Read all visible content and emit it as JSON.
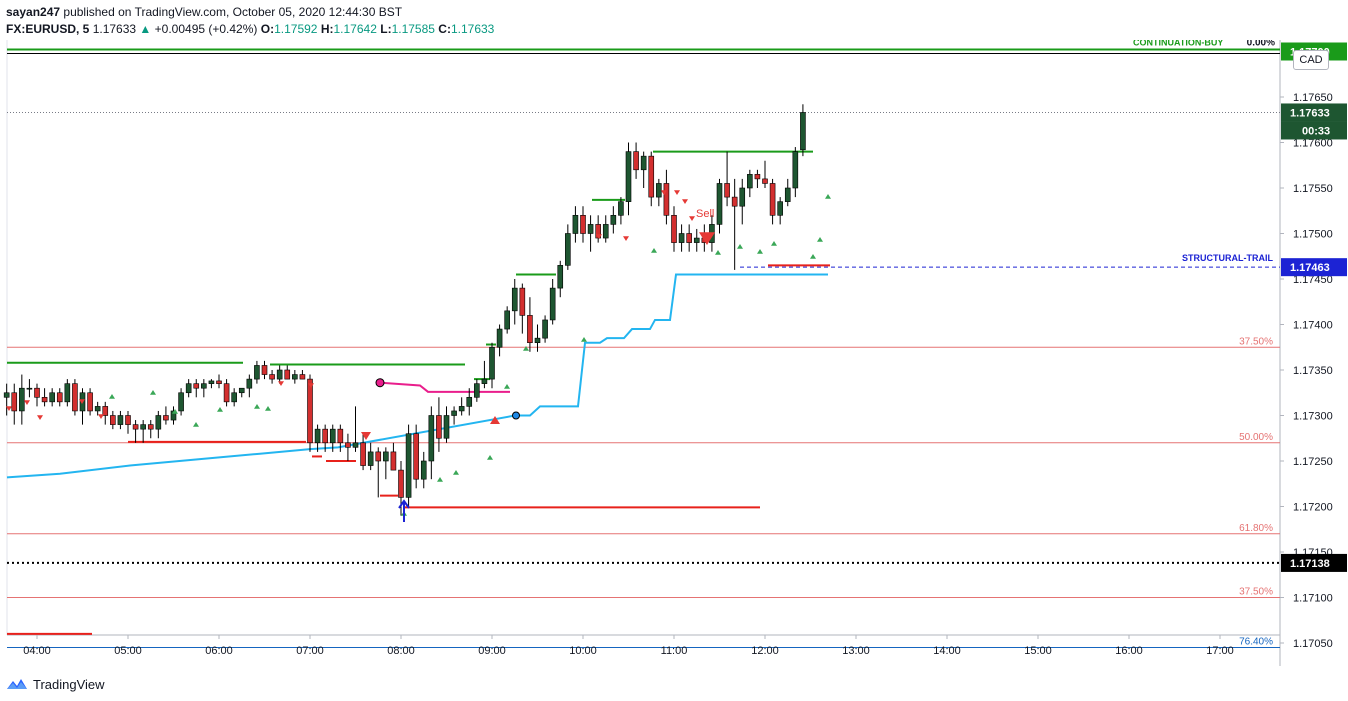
{
  "header": {
    "publisher": "sayan247",
    "published_text": "published on TradingView.com, October 05, 2020 12:44:30 BST",
    "symbol": "FX:EURUSD, 5",
    "last": "1.17633",
    "change": "+0.00495 (+0.42%)",
    "o_label": "O:",
    "o_value": "1.17592",
    "h_label": "H:",
    "h_value": "1.17642",
    "l_label": "L:",
    "l_value": "1.17585",
    "c_label": "C:",
    "c_value": "1.17633"
  },
  "currency_button": "CAD",
  "footer": {
    "brand": "TradingView"
  },
  "colors": {
    "bull": "#1e5631",
    "bear": "#d32f2f",
    "green_level": "#1a9b1a",
    "red_level": "#e8211b",
    "trail": "#23b5f0",
    "pink": "#e91e8c",
    "fib": "#e57373",
    "fib_blue": "#1565c0"
  },
  "chart_data": {
    "type": "candlestick",
    "timeframe": "5",
    "y_axis": {
      "ticks": [
        "1.17650",
        "1.17600",
        "1.17550",
        "1.17500",
        "1.17450",
        "1.17400",
        "1.17350",
        "1.17300",
        "1.17250",
        "1.17200",
        "1.17150",
        "1.17100",
        "1.17050"
      ]
    },
    "x_axis": {
      "ticks": [
        "04:00",
        "05:00",
        "06:00",
        "07:00",
        "08:00",
        "09:00",
        "10:00",
        "11:00",
        "12:00",
        "13:00",
        "14:00",
        "15:00",
        "16:00",
        "17:00"
      ]
    },
    "price_labels": {
      "last": "1.17633",
      "countdown": "00:33",
      "structural_trail": "1.17463",
      "dotted_level": "1.17138",
      "continuation": "1.17700"
    },
    "annotations": {
      "continuation": "CONTINUATION-BUY",
      "continuation_pct": "0.00%",
      "structural_trail": "STRUCTURAL-TRAIL",
      "sell": "Sell"
    },
    "fib_levels": [
      {
        "label": "37.50%",
        "price": 1.17375
      },
      {
        "label": "50.00%",
        "price": 1.1727
      },
      {
        "label": "61.80%",
        "price": 1.1717
      },
      {
        "label": "37.50%",
        "price": 1.171
      },
      {
        "label": "76.40%",
        "price": 1.17045
      }
    ],
    "candles": [
      {
        "t": "03:40",
        "o": 1.1732,
        "h": 1.17335,
        "l": 1.173,
        "c": 1.17325
      },
      {
        "t": "03:45",
        "o": 1.17325,
        "h": 1.17335,
        "l": 1.1729,
        "c": 1.17305
      },
      {
        "t": "03:50",
        "o": 1.17305,
        "h": 1.17345,
        "l": 1.1729,
        "c": 1.1733
      },
      {
        "t": "03:55",
        "o": 1.1733,
        "h": 1.1734,
        "l": 1.1732,
        "c": 1.1733
      },
      {
        "t": "04:00",
        "o": 1.1733,
        "h": 1.17335,
        "l": 1.1731,
        "c": 1.1732
      },
      {
        "t": "04:05",
        "o": 1.1732,
        "h": 1.1733,
        "l": 1.1731,
        "c": 1.17315
      },
      {
        "t": "04:10",
        "o": 1.17315,
        "h": 1.1733,
        "l": 1.1731,
        "c": 1.17325
      },
      {
        "t": "04:15",
        "o": 1.17325,
        "h": 1.1733,
        "l": 1.1731,
        "c": 1.17315
      },
      {
        "t": "04:20",
        "o": 1.17315,
        "h": 1.1734,
        "l": 1.1731,
        "c": 1.17335
      },
      {
        "t": "04:25",
        "o": 1.17335,
        "h": 1.1734,
        "l": 1.173,
        "c": 1.17305
      },
      {
        "t": "04:30",
        "o": 1.17305,
        "h": 1.1733,
        "l": 1.1729,
        "c": 1.17325
      },
      {
        "t": "04:35",
        "o": 1.17325,
        "h": 1.1733,
        "l": 1.173,
        "c": 1.17305
      },
      {
        "t": "04:40",
        "o": 1.17305,
        "h": 1.17315,
        "l": 1.173,
        "c": 1.1731
      },
      {
        "t": "04:45",
        "o": 1.1731,
        "h": 1.17315,
        "l": 1.1729,
        "c": 1.173
      },
      {
        "t": "04:50",
        "o": 1.173,
        "h": 1.17305,
        "l": 1.17285,
        "c": 1.1729
      },
      {
        "t": "04:55",
        "o": 1.1729,
        "h": 1.17305,
        "l": 1.17285,
        "c": 1.173
      },
      {
        "t": "05:00",
        "o": 1.173,
        "h": 1.17305,
        "l": 1.1728,
        "c": 1.1729
      },
      {
        "t": "05:05",
        "o": 1.1729,
        "h": 1.17295,
        "l": 1.1727,
        "c": 1.17285
      },
      {
        "t": "05:10",
        "o": 1.17285,
        "h": 1.17295,
        "l": 1.1727,
        "c": 1.1729
      },
      {
        "t": "05:15",
        "o": 1.1729,
        "h": 1.17295,
        "l": 1.17275,
        "c": 1.17285
      },
      {
        "t": "05:20",
        "o": 1.17285,
        "h": 1.17305,
        "l": 1.17275,
        "c": 1.173
      },
      {
        "t": "05:25",
        "o": 1.173,
        "h": 1.1731,
        "l": 1.1729,
        "c": 1.17295
      },
      {
        "t": "05:30",
        "o": 1.17295,
        "h": 1.1731,
        "l": 1.1729,
        "c": 1.17305
      },
      {
        "t": "05:35",
        "o": 1.17305,
        "h": 1.1733,
        "l": 1.173,
        "c": 1.17325
      },
      {
        "t": "05:40",
        "o": 1.17325,
        "h": 1.1734,
        "l": 1.1732,
        "c": 1.17335
      },
      {
        "t": "05:45",
        "o": 1.17335,
        "h": 1.1734,
        "l": 1.1732,
        "c": 1.1733
      },
      {
        "t": "05:50",
        "o": 1.1733,
        "h": 1.1734,
        "l": 1.1732,
        "c": 1.17335
      },
      {
        "t": "05:55",
        "o": 1.17335,
        "h": 1.1734,
        "l": 1.1733,
        "c": 1.17338
      },
      {
        "t": "06:00",
        "o": 1.17338,
        "h": 1.17345,
        "l": 1.1733,
        "c": 1.17335
      },
      {
        "t": "06:05",
        "o": 1.17335,
        "h": 1.1734,
        "l": 1.1731,
        "c": 1.17315
      },
      {
        "t": "06:10",
        "o": 1.17315,
        "h": 1.1733,
        "l": 1.1731,
        "c": 1.17325
      },
      {
        "t": "06:15",
        "o": 1.17325,
        "h": 1.1733,
        "l": 1.1732,
        "c": 1.1733
      },
      {
        "t": "06:20",
        "o": 1.1733,
        "h": 1.17345,
        "l": 1.1732,
        "c": 1.1734
      },
      {
        "t": "06:25",
        "o": 1.1734,
        "h": 1.1736,
        "l": 1.17335,
        "c": 1.17355
      },
      {
        "t": "06:30",
        "o": 1.17355,
        "h": 1.1736,
        "l": 1.1734,
        "c": 1.17345
      },
      {
        "t": "06:35",
        "o": 1.17345,
        "h": 1.1735,
        "l": 1.17335,
        "c": 1.1734
      },
      {
        "t": "06:40",
        "o": 1.1734,
        "h": 1.17355,
        "l": 1.17335,
        "c": 1.1735
      },
      {
        "t": "06:45",
        "o": 1.1735,
        "h": 1.17355,
        "l": 1.1734,
        "c": 1.1734
      },
      {
        "t": "06:50",
        "o": 1.1734,
        "h": 1.1735,
        "l": 1.17335,
        "c": 1.17345
      },
      {
        "t": "06:55",
        "o": 1.17345,
        "h": 1.1735,
        "l": 1.1734,
        "c": 1.1734
      },
      {
        "t": "07:00",
        "o": 1.1734,
        "h": 1.17345,
        "l": 1.1726,
        "c": 1.1727
      },
      {
        "t": "07:05",
        "o": 1.1727,
        "h": 1.1729,
        "l": 1.1726,
        "c": 1.17285
      },
      {
        "t": "07:10",
        "o": 1.17285,
        "h": 1.1729,
        "l": 1.1726,
        "c": 1.1727
      },
      {
        "t": "07:15",
        "o": 1.1727,
        "h": 1.1729,
        "l": 1.1726,
        "c": 1.17285
      },
      {
        "t": "07:20",
        "o": 1.17285,
        "h": 1.1729,
        "l": 1.1726,
        "c": 1.1727
      },
      {
        "t": "07:25",
        "o": 1.1727,
        "h": 1.1728,
        "l": 1.1725,
        "c": 1.17265
      },
      {
        "t": "07:30",
        "o": 1.17265,
        "h": 1.1731,
        "l": 1.1726,
        "c": 1.1727
      },
      {
        "t": "07:35",
        "o": 1.1727,
        "h": 1.1728,
        "l": 1.1724,
        "c": 1.17245
      },
      {
        "t": "07:40",
        "o": 1.17245,
        "h": 1.1727,
        "l": 1.1724,
        "c": 1.1726
      },
      {
        "t": "07:45",
        "o": 1.1726,
        "h": 1.17265,
        "l": 1.1721,
        "c": 1.1725
      },
      {
        "t": "07:50",
        "o": 1.1725,
        "h": 1.17265,
        "l": 1.1723,
        "c": 1.1726
      },
      {
        "t": "07:55",
        "o": 1.1726,
        "h": 1.1727,
        "l": 1.1724,
        "c": 1.1724
      },
      {
        "t": "08:00",
        "o": 1.1724,
        "h": 1.1725,
        "l": 1.1719,
        "c": 1.1721
      },
      {
        "t": "08:05",
        "o": 1.1721,
        "h": 1.1729,
        "l": 1.172,
        "c": 1.1728
      },
      {
        "t": "08:10",
        "o": 1.1728,
        "h": 1.1729,
        "l": 1.1722,
        "c": 1.1723
      },
      {
        "t": "08:15",
        "o": 1.1723,
        "h": 1.1726,
        "l": 1.1722,
        "c": 1.1725
      },
      {
        "t": "08:20",
        "o": 1.1725,
        "h": 1.1731,
        "l": 1.1723,
        "c": 1.173
      },
      {
        "t": "08:25",
        "o": 1.173,
        "h": 1.1732,
        "l": 1.1726,
        "c": 1.17275
      },
      {
        "t": "08:30",
        "o": 1.17275,
        "h": 1.1731,
        "l": 1.1727,
        "c": 1.173
      },
      {
        "t": "08:35",
        "o": 1.173,
        "h": 1.1731,
        "l": 1.1729,
        "c": 1.17305
      },
      {
        "t": "08:40",
        "o": 1.17305,
        "h": 1.1732,
        "l": 1.173,
        "c": 1.1731
      },
      {
        "t": "08:45",
        "o": 1.1731,
        "h": 1.1733,
        "l": 1.173,
        "c": 1.1732
      },
      {
        "t": "08:50",
        "o": 1.1732,
        "h": 1.1734,
        "l": 1.17315,
        "c": 1.17335
      },
      {
        "t": "08:55",
        "o": 1.17335,
        "h": 1.1736,
        "l": 1.1733,
        "c": 1.1734
      },
      {
        "t": "09:00",
        "o": 1.1734,
        "h": 1.1738,
        "l": 1.1733,
        "c": 1.17375
      },
      {
        "t": "09:05",
        "o": 1.17375,
        "h": 1.174,
        "l": 1.17365,
        "c": 1.17395
      },
      {
        "t": "09:10",
        "o": 1.17395,
        "h": 1.1742,
        "l": 1.1739,
        "c": 1.17415
      },
      {
        "t": "09:15",
        "o": 1.17415,
        "h": 1.1745,
        "l": 1.174,
        "c": 1.1744
      },
      {
        "t": "09:20",
        "o": 1.1744,
        "h": 1.17445,
        "l": 1.1739,
        "c": 1.1741
      },
      {
        "t": "09:25",
        "o": 1.1741,
        "h": 1.1743,
        "l": 1.1737,
        "c": 1.1738
      },
      {
        "t": "09:30",
        "o": 1.1738,
        "h": 1.174,
        "l": 1.1737,
        "c": 1.17385
      },
      {
        "t": "09:35",
        "o": 1.17385,
        "h": 1.1741,
        "l": 1.1738,
        "c": 1.17405
      },
      {
        "t": "09:40",
        "o": 1.17405,
        "h": 1.1745,
        "l": 1.174,
        "c": 1.1744
      },
      {
        "t": "09:45",
        "o": 1.1744,
        "h": 1.1747,
        "l": 1.1743,
        "c": 1.17465
      },
      {
        "t": "09:50",
        "o": 1.17465,
        "h": 1.1751,
        "l": 1.1746,
        "c": 1.175
      },
      {
        "t": "09:55",
        "o": 1.175,
        "h": 1.1753,
        "l": 1.1749,
        "c": 1.1752
      },
      {
        "t": "10:00",
        "o": 1.1752,
        "h": 1.1753,
        "l": 1.1749,
        "c": 1.175
      },
      {
        "t": "10:05",
        "o": 1.175,
        "h": 1.1752,
        "l": 1.1748,
        "c": 1.1751
      },
      {
        "t": "10:10",
        "o": 1.1751,
        "h": 1.1752,
        "l": 1.1749,
        "c": 1.17495
      },
      {
        "t": "10:15",
        "o": 1.17495,
        "h": 1.1752,
        "l": 1.1749,
        "c": 1.1751
      },
      {
        "t": "10:20",
        "o": 1.1751,
        "h": 1.1753,
        "l": 1.175,
        "c": 1.1752
      },
      {
        "t": "10:25",
        "o": 1.1752,
        "h": 1.1754,
        "l": 1.1751,
        "c": 1.17535
      },
      {
        "t": "10:30",
        "o": 1.17535,
        "h": 1.176,
        "l": 1.1752,
        "c": 1.1759
      },
      {
        "t": "10:35",
        "o": 1.1759,
        "h": 1.176,
        "l": 1.1756,
        "c": 1.1757
      },
      {
        "t": "10:40",
        "o": 1.1757,
        "h": 1.1759,
        "l": 1.1755,
        "c": 1.17585
      },
      {
        "t": "10:45",
        "o": 1.17585,
        "h": 1.1759,
        "l": 1.1753,
        "c": 1.1754
      },
      {
        "t": "10:50",
        "o": 1.1754,
        "h": 1.1756,
        "l": 1.1753,
        "c": 1.17555
      },
      {
        "t": "10:55",
        "o": 1.17555,
        "h": 1.1757,
        "l": 1.1751,
        "c": 1.1752
      },
      {
        "t": "11:00",
        "o": 1.1752,
        "h": 1.1753,
        "l": 1.1748,
        "c": 1.1749
      },
      {
        "t": "11:05",
        "o": 1.1749,
        "h": 1.1751,
        "l": 1.1748,
        "c": 1.175
      },
      {
        "t": "11:10",
        "o": 1.175,
        "h": 1.1751,
        "l": 1.1748,
        "c": 1.1749
      },
      {
        "t": "11:15",
        "o": 1.1749,
        "h": 1.17505,
        "l": 1.1748,
        "c": 1.17495
      },
      {
        "t": "11:20",
        "o": 1.17495,
        "h": 1.1751,
        "l": 1.1748,
        "c": 1.1749
      },
      {
        "t": "11:25",
        "o": 1.1749,
        "h": 1.1752,
        "l": 1.1748,
        "c": 1.1751
      },
      {
        "t": "11:30",
        "o": 1.1751,
        "h": 1.1756,
        "l": 1.175,
        "c": 1.17555
      },
      {
        "t": "11:35",
        "o": 1.17555,
        "h": 1.1759,
        "l": 1.1753,
        "c": 1.1754
      },
      {
        "t": "11:40",
        "o": 1.1754,
        "h": 1.1756,
        "l": 1.1746,
        "c": 1.1753
      },
      {
        "t": "11:45",
        "o": 1.1753,
        "h": 1.1756,
        "l": 1.1751,
        "c": 1.1755
      },
      {
        "t": "11:50",
        "o": 1.1755,
        "h": 1.1757,
        "l": 1.1754,
        "c": 1.17565
      },
      {
        "t": "11:55",
        "o": 1.17565,
        "h": 1.1757,
        "l": 1.1755,
        "c": 1.1756
      },
      {
        "t": "12:00",
        "o": 1.1756,
        "h": 1.1758,
        "l": 1.1755,
        "c": 1.17555
      },
      {
        "t": "12:05",
        "o": 1.17555,
        "h": 1.1756,
        "l": 1.1751,
        "c": 1.1752
      },
      {
        "t": "12:10",
        "o": 1.1752,
        "h": 1.1754,
        "l": 1.1751,
        "c": 1.17535
      },
      {
        "t": "12:15",
        "o": 1.17535,
        "h": 1.1756,
        "l": 1.1753,
        "c": 1.1755
      },
      {
        "t": "12:20",
        "o": 1.1755,
        "h": 1.17595,
        "l": 1.1754,
        "c": 1.1759
      },
      {
        "t": "12:25",
        "o": 1.17592,
        "h": 1.17642,
        "l": 1.17585,
        "c": 1.17633
      }
    ]
  }
}
